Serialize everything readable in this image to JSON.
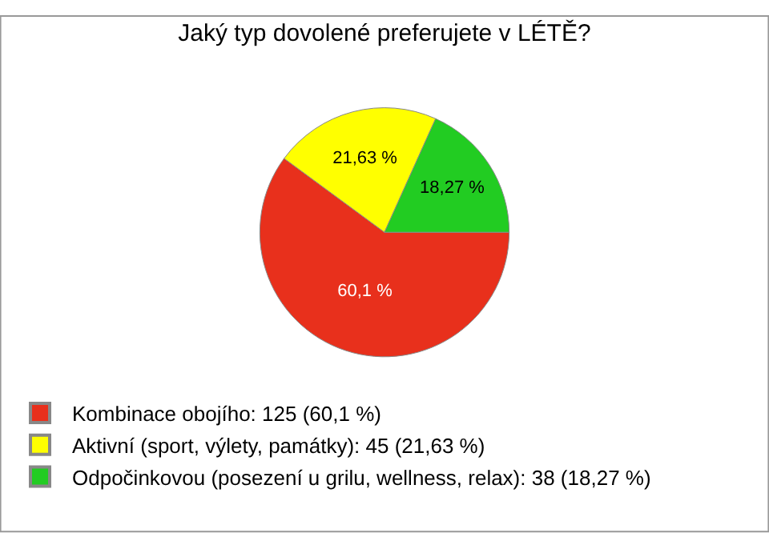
{
  "chart_data": {
    "type": "pie",
    "title": "Jaký typ dovolené preferujete v LÉTĚ?",
    "categories": [
      "Kombinace obojího: 125 (60,1 %)",
      "Aktivní (sport, výlety, památky): 45 (21,63 %)",
      "Odpočinkovou (posezení u grilu, wellness, relax): 38 (18,27 %)"
    ],
    "values": [
      60.1,
      21.63,
      18.27
    ],
    "value_labels": [
      "60,1 %",
      "21,63 %",
      "18,27 %"
    ],
    "colors": [
      "#e8301c",
      "#ffff00",
      "#22cc22"
    ],
    "legend": "bottom left"
  }
}
